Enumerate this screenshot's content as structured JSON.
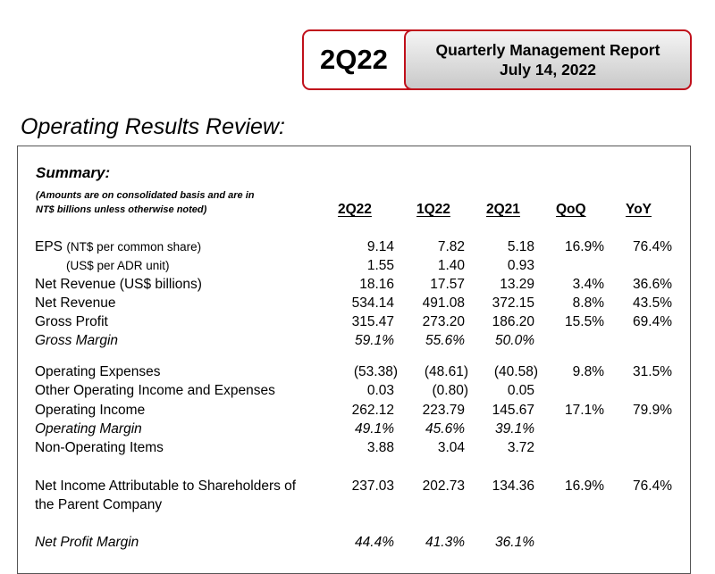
{
  "header": {
    "quarter": "2Q22",
    "report_title": "Quarterly Management Report",
    "report_date": "July 14, 2022"
  },
  "section_title": "Operating Results Review:",
  "summary": {
    "title": "Summary:",
    "note_line1": "(Amounts are on consolidated basis and are in",
    "note_line2": "NT$ billions unless otherwise noted)",
    "columns": [
      "2Q22",
      "1Q22",
      "2Q21",
      "QoQ",
      "YoY"
    ]
  },
  "rows": [
    {
      "label": "EPS",
      "unit": "(NT$ per common share)",
      "values": [
        "9.14",
        "7.82",
        "5.18",
        "16.9%",
        "76.4%"
      ]
    },
    {
      "label": "(US$ per ADR unit)",
      "values": [
        "1.55",
        "1.40",
        "0.93",
        "",
        ""
      ]
    },
    {
      "label": "Net Revenue (US$ billions)",
      "values": [
        "18.16",
        "17.57",
        "13.29",
        "3.4%",
        "36.6%"
      ]
    },
    {
      "label": "Net Revenue",
      "values": [
        "534.14",
        "491.08",
        "372.15",
        "8.8%",
        "43.5%"
      ]
    },
    {
      "label": "Gross Profit",
      "values": [
        "315.47",
        "273.20",
        "186.20",
        "15.5%",
        "69.4%"
      ]
    },
    {
      "label": "Gross Margin",
      "values": [
        "59.1%",
        "55.6%",
        "50.0%",
        "",
        ""
      ]
    },
    {
      "label": "Operating Expenses",
      "values": [
        "(53.38)",
        "(48.61)",
        "(40.58)",
        "9.8%",
        "31.5%"
      ]
    },
    {
      "label": "Other Operating Income and Expenses",
      "values": [
        "0.03",
        "(0.80)",
        "0.05",
        "",
        ""
      ]
    },
    {
      "label": "Operating Income",
      "values": [
        "262.12",
        "223.79",
        "145.67",
        "17.1%",
        "79.9%"
      ]
    },
    {
      "label": "Operating Margin",
      "values": [
        "49.1%",
        "45.6%",
        "39.1%",
        "",
        ""
      ]
    },
    {
      "label": "Non-Operating Items",
      "values": [
        "3.88",
        "3.04",
        "3.72",
        "",
        ""
      ]
    },
    {
      "label": "Net Income Attributable to Shareholders of",
      "label_line2": "the Parent Company",
      "values": [
        "237.03",
        "202.73",
        "134.36",
        "16.9%",
        "76.4%"
      ]
    },
    {
      "label": "Net Profit Margin",
      "values": [
        "44.4%",
        "41.3%",
        "36.1%",
        "",
        ""
      ]
    }
  ]
}
